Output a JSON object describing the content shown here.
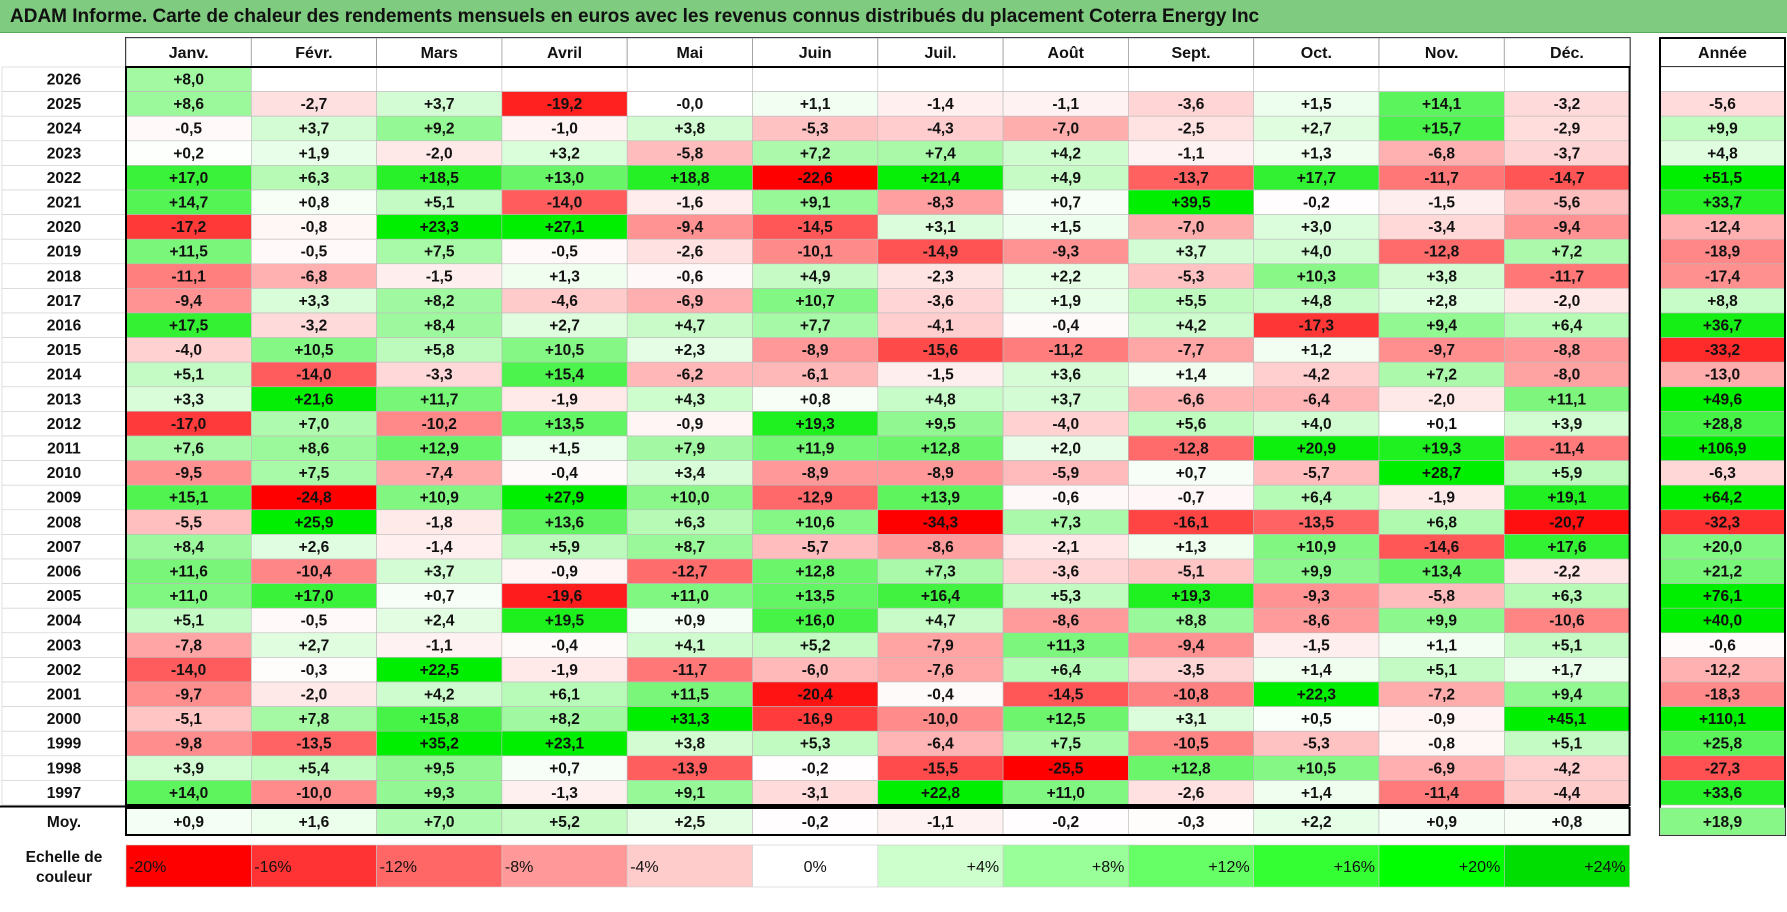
{
  "title": "ADAM Informe. Carte de chaleur des rendements mensuels en euros avec les revenus connus distribués du placement Coterra Energy Inc",
  "chart_data": {
    "type": "heatmap",
    "title": "ADAM Informe. Carte de chaleur des rendements mensuels en euros avec les revenus connus distribués du placement Coterra Energy Inc",
    "columns": [
      "Janv.",
      "Févr.",
      "Mars",
      "Avril",
      "Mai",
      "Juin",
      "Juil.",
      "Août",
      "Sept.",
      "Oct.",
      "Nov.",
      "Déc."
    ],
    "year_column_label": "Année",
    "rows": [
      {
        "year": "2026",
        "values": [
          8.0,
          null,
          null,
          null,
          null,
          null,
          null,
          null,
          null,
          null,
          null,
          null
        ],
        "annual": null
      },
      {
        "year": "2025",
        "values": [
          8.6,
          -2.7,
          3.7,
          -19.2,
          -0.0,
          1.1,
          -1.4,
          -1.1,
          -3.6,
          1.5,
          14.1,
          -3.2
        ],
        "annual": -5.6
      },
      {
        "year": "2024",
        "values": [
          -0.5,
          3.7,
          9.2,
          -1.0,
          3.8,
          -5.3,
          -4.3,
          -7.0,
          -2.5,
          2.7,
          15.7,
          -2.9
        ],
        "annual": 9.9
      },
      {
        "year": "2023",
        "values": [
          0.2,
          1.9,
          -2.0,
          3.2,
          -5.8,
          7.2,
          7.4,
          4.2,
          -1.1,
          1.3,
          -6.8,
          -3.7
        ],
        "annual": 4.8
      },
      {
        "year": "2022",
        "values": [
          17.0,
          6.3,
          18.5,
          13.0,
          18.8,
          -22.6,
          21.4,
          4.9,
          -13.7,
          17.7,
          -11.7,
          -14.7
        ],
        "annual": 51.5
      },
      {
        "year": "2021",
        "values": [
          14.7,
          0.8,
          5.1,
          -14.0,
          -1.6,
          9.1,
          -8.3,
          0.7,
          39.5,
          -0.2,
          -1.5,
          -5.6
        ],
        "annual": 33.7
      },
      {
        "year": "2020",
        "values": [
          -17.2,
          -0.8,
          23.3,
          27.1,
          -9.4,
          -14.5,
          3.1,
          1.5,
          -7.0,
          3.0,
          -3.4,
          -9.4
        ],
        "annual": -12.4
      },
      {
        "year": "2019",
        "values": [
          11.5,
          -0.5,
          7.5,
          -0.5,
          -2.6,
          -10.1,
          -14.9,
          -9.3,
          3.7,
          4.0,
          -12.8,
          7.2
        ],
        "annual": -18.9
      },
      {
        "year": "2018",
        "values": [
          -11.1,
          -6.8,
          -1.5,
          1.3,
          -0.6,
          4.9,
          -2.3,
          2.2,
          -5.3,
          10.3,
          3.8,
          -11.7
        ],
        "annual": -17.4
      },
      {
        "year": "2017",
        "values": [
          -9.4,
          3.3,
          8.2,
          -4.6,
          -6.9,
          10.7,
          -3.6,
          1.9,
          5.5,
          4.8,
          2.8,
          -2.0
        ],
        "annual": 8.8
      },
      {
        "year": "2016",
        "values": [
          17.5,
          -3.2,
          8.4,
          2.7,
          4.7,
          7.7,
          -4.1,
          -0.4,
          4.2,
          -17.3,
          9.4,
          6.4
        ],
        "annual": 36.7
      },
      {
        "year": "2015",
        "values": [
          -4.0,
          10.5,
          5.8,
          10.5,
          2.3,
          -8.9,
          -15.6,
          -11.2,
          -7.7,
          1.2,
          -9.7,
          -8.8
        ],
        "annual": -33.2
      },
      {
        "year": "2014",
        "values": [
          5.1,
          -14.0,
          -3.3,
          15.4,
          -6.2,
          -6.1,
          -1.5,
          3.6,
          1.4,
          -4.2,
          7.2,
          -8.0
        ],
        "annual": -13.0
      },
      {
        "year": "2013",
        "values": [
          3.3,
          21.6,
          11.7,
          -1.9,
          4.3,
          0.8,
          4.8,
          3.7,
          -6.6,
          -6.4,
          -2.0,
          11.1
        ],
        "annual": 49.6
      },
      {
        "year": "2012",
        "values": [
          -17.0,
          7.0,
          -10.2,
          13.5,
          -0.9,
          19.3,
          9.5,
          -4.0,
          5.6,
          4.0,
          0.1,
          3.9
        ],
        "annual": 28.8
      },
      {
        "year": "2011",
        "values": [
          7.6,
          8.6,
          12.9,
          1.5,
          7.9,
          11.9,
          12.8,
          2.0,
          -12.8,
          20.9,
          19.3,
          -11.4
        ],
        "annual": 106.9
      },
      {
        "year": "2010",
        "values": [
          -9.5,
          7.5,
          -7.4,
          -0.4,
          3.4,
          -8.9,
          -8.9,
          -5.9,
          0.7,
          -5.7,
          28.7,
          5.9
        ],
        "annual": -6.3
      },
      {
        "year": "2009",
        "values": [
          15.1,
          -24.8,
          10.9,
          27.9,
          10.0,
          -12.9,
          13.9,
          -0.6,
          -0.7,
          6.4,
          -1.9,
          19.1
        ],
        "annual": 64.2
      },
      {
        "year": "2008",
        "values": [
          -5.5,
          25.9,
          -1.8,
          13.6,
          6.3,
          10.6,
          -34.3,
          7.3,
          -16.1,
          -13.5,
          6.8,
          -20.7
        ],
        "annual": -32.3
      },
      {
        "year": "2007",
        "values": [
          8.4,
          2.6,
          -1.4,
          5.9,
          8.7,
          -5.7,
          -8.6,
          -2.1,
          1.3,
          10.9,
          -14.6,
          17.6
        ],
        "annual": 20.0
      },
      {
        "year": "2006",
        "values": [
          11.6,
          -10.4,
          3.7,
          -0.9,
          -12.7,
          12.8,
          7.3,
          -3.6,
          -5.1,
          9.9,
          13.4,
          -2.2
        ],
        "annual": 21.2
      },
      {
        "year": "2005",
        "values": [
          11.0,
          17.0,
          0.7,
          -19.6,
          11.0,
          13.5,
          16.4,
          5.3,
          19.3,
          -9.3,
          -5.8,
          6.3
        ],
        "annual": 76.1
      },
      {
        "year": "2004",
        "values": [
          5.1,
          -0.5,
          2.4,
          19.5,
          0.9,
          16.0,
          4.7,
          -8.6,
          8.8,
          -8.6,
          9.9,
          -10.6
        ],
        "annual": 40.0
      },
      {
        "year": "2003",
        "values": [
          -7.8,
          2.7,
          -1.1,
          -0.4,
          4.1,
          5.2,
          -7.9,
          11.3,
          -9.4,
          -1.5,
          1.1,
          5.1
        ],
        "annual": -0.6
      },
      {
        "year": "2002",
        "values": [
          -14.0,
          -0.3,
          22.5,
          -1.9,
          -11.7,
          -6.0,
          -7.6,
          6.4,
          -3.5,
          1.4,
          5.1,
          1.7
        ],
        "annual": -12.2
      },
      {
        "year": "2001",
        "values": [
          -9.7,
          -2.0,
          4.2,
          6.1,
          11.5,
          -20.4,
          -0.4,
          -14.5,
          -10.8,
          22.3,
          -7.2,
          9.4
        ],
        "annual": -18.3
      },
      {
        "year": "2000",
        "values": [
          -5.1,
          7.8,
          15.8,
          8.2,
          31.3,
          -16.9,
          -10.0,
          12.5,
          3.1,
          0.5,
          -0.9,
          45.1
        ],
        "annual": 110.1
      },
      {
        "year": "1999",
        "values": [
          -9.8,
          -13.5,
          35.2,
          23.1,
          3.8,
          5.3,
          -6.4,
          7.5,
          -10.5,
          -5.3,
          -0.8,
          5.1
        ],
        "annual": 25.8
      },
      {
        "year": "1998",
        "values": [
          3.9,
          5.4,
          9.5,
          0.7,
          -13.9,
          -0.2,
          -15.5,
          -25.5,
          12.8,
          10.5,
          -6.9,
          -4.2
        ],
        "annual": -27.3
      },
      {
        "year": "1997",
        "values": [
          14.0,
          -10.0,
          9.3,
          -1.3,
          9.1,
          -3.1,
          22.8,
          11.0,
          -2.6,
          1.4,
          -11.4,
          -4.4
        ],
        "annual": 33.6
      }
    ],
    "average": {
      "label": "Moy.",
      "values": [
        0.9,
        1.6,
        7.0,
        5.2,
        2.5,
        -0.2,
        -1.1,
        -0.2,
        -0.3,
        2.2,
        0.9,
        0.8
      ],
      "annual": 18.9
    },
    "scale": {
      "label_line1": "Echelle de",
      "label_line2": "couleur",
      "stops": [
        {
          "label": "-20%",
          "color": "#ff0000"
        },
        {
          "label": "-16%",
          "color": "#ff3333"
        },
        {
          "label": "-12%",
          "color": "#ff6666"
        },
        {
          "label": "-8%",
          "color": "#ff9999"
        },
        {
          "label": "-4%",
          "color": "#ffcccc"
        },
        {
          "label": "0%",
          "color": "#ffffff"
        },
        {
          "label": "+4%",
          "color": "#ccffcc"
        },
        {
          "label": "+8%",
          "color": "#99ff99"
        },
        {
          "label": "+12%",
          "color": "#66ff66"
        },
        {
          "label": "+16%",
          "color": "#33ff33"
        },
        {
          "label": "+20%",
          "color": "#00ff00"
        },
        {
          "label": "+24%",
          "color": "#00dd00"
        }
      ]
    },
    "colors": {
      "negative": "#ff0000",
      "neutral": "#ffffff",
      "positive": "#00ee00",
      "header": "#7fcb7f"
    }
  }
}
